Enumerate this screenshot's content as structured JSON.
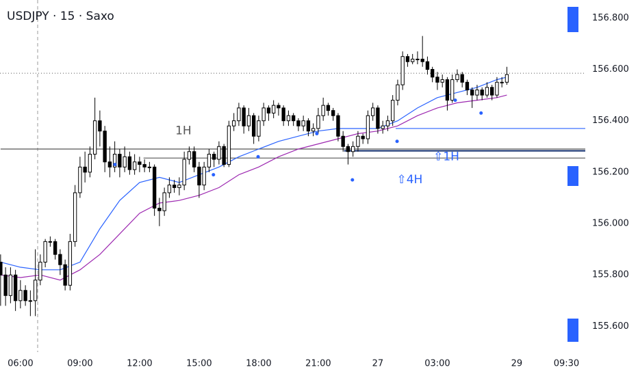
{
  "chart_data": {
    "type": "candlestick",
    "title": "USDJPY · 15 · Saxo",
    "x": [
      5,
      5.25,
      5.5,
      5.75,
      6,
      6.25,
      6.5,
      6.75,
      7,
      7.25,
      7.5,
      7.75,
      8,
      8.25,
      8.5,
      8.75,
      9,
      9.25,
      9.5,
      9.75,
      10,
      10.25,
      10.5,
      10.75,
      11,
      11.25,
      11.5,
      11.75,
      12,
      12.25,
      12.5,
      12.75,
      13,
      13.25,
      13.5,
      13.75,
      14,
      14.25,
      14.5,
      14.75,
      15,
      15.25,
      15.5,
      15.75,
      16,
      16.25,
      16.5,
      16.75,
      17,
      17.25,
      17.5,
      17.75,
      18,
      18.25,
      18.5,
      18.75,
      19,
      19.25,
      19.5,
      19.75,
      20,
      20.25,
      20.5,
      20.75,
      21,
      21.25,
      21.5,
      21.75,
      22,
      22.25,
      22.5,
      22.75,
      23,
      23.25,
      23.5,
      23.75,
      24,
      24.25,
      24.5,
      24.75,
      25,
      25.25,
      25.5,
      25.75,
      26,
      26.25,
      26.5,
      26.75,
      27,
      27.25,
      27.5,
      27.75,
      28,
      28.25,
      28.5,
      28.75,
      29,
      29.25,
      29.5,
      29.75,
      30,
      30.25,
      30.5
    ],
    "open": [
      155.85,
      155.8,
      155.72,
      155.8,
      155.7,
      155.74,
      155.7,
      155.7,
      155.78,
      155.85,
      155.93,
      155.93,
      155.88,
      155.84,
      155.76,
      155.93,
      156.12,
      156.22,
      156.2,
      156.27,
      156.4,
      156.36,
      156.24,
      156.22,
      156.27,
      156.22,
      156.26,
      156.21,
      156.24,
      156.23,
      156.22,
      156.22,
      156.06,
      156.05,
      156.12,
      156.15,
      156.14,
      156.15,
      156.25,
      156.28,
      156.22,
      156.15,
      156.22,
      156.27,
      156.25,
      156.3,
      156.23,
      156.38,
      156.4,
      156.45,
      156.38,
      156.42,
      156.34,
      156.4,
      156.45,
      156.43,
      156.46,
      156.45,
      156.4,
      156.42,
      156.4,
      156.38,
      156.4,
      156.36,
      156.37,
      156.42,
      156.46,
      156.44,
      156.42,
      156.34,
      156.3,
      156.28,
      156.3,
      156.34,
      156.33,
      156.42,
      156.45,
      156.37,
      156.38,
      156.4,
      156.48,
      156.54,
      156.65,
      156.63,
      156.64,
      156.64,
      156.63,
      156.6,
      156.57,
      156.55,
      156.56,
      156.48,
      156.56,
      156.58,
      156.55,
      156.52,
      156.5,
      156.52,
      156.5,
      156.53,
      156.5,
      156.55,
      156.55
    ],
    "high": [
      155.88,
      155.83,
      155.83,
      155.82,
      155.78,
      155.76,
      155.74,
      155.9,
      155.88,
      155.94,
      155.95,
      155.94,
      155.9,
      155.86,
      155.96,
      156.15,
      156.26,
      156.28,
      156.3,
      156.49,
      156.44,
      156.38,
      156.3,
      156.32,
      156.29,
      156.3,
      156.28,
      156.27,
      156.26,
      156.25,
      156.24,
      156.23,
      156.1,
      156.14,
      156.18,
      156.17,
      156.18,
      156.28,
      156.3,
      156.3,
      156.24,
      156.24,
      156.29,
      156.28,
      156.32,
      156.31,
      156.4,
      156.43,
      156.47,
      156.46,
      156.45,
      156.43,
      156.42,
      156.47,
      156.46,
      156.48,
      156.47,
      156.46,
      156.44,
      156.43,
      156.41,
      156.42,
      156.41,
      156.39,
      156.45,
      156.49,
      156.47,
      156.45,
      156.43,
      156.36,
      156.31,
      156.32,
      156.36,
      156.35,
      156.44,
      156.47,
      156.46,
      156.4,
      156.42,
      156.5,
      156.56,
      156.67,
      156.66,
      156.66,
      156.67,
      156.73,
      156.65,
      156.61,
      156.59,
      156.58,
      156.57,
      156.58,
      156.6,
      156.59,
      156.56,
      156.53,
      156.54,
      156.53,
      156.55,
      156.54,
      156.57,
      156.57,
      156.61
    ],
    "low": [
      155.68,
      155.68,
      155.69,
      155.66,
      155.67,
      155.68,
      155.64,
      155.64,
      155.76,
      155.83,
      155.91,
      155.86,
      155.8,
      155.74,
      155.74,
      155.91,
      156.1,
      156.16,
      156.18,
      156.25,
      156.3,
      156.2,
      156.18,
      156.2,
      156.18,
      156.2,
      156.19,
      156.19,
      156.2,
      156.2,
      156.2,
      156.03,
      155.99,
      156.03,
      156.1,
      156.12,
      156.11,
      156.13,
      156.23,
      156.2,
      156.1,
      156.13,
      156.2,
      156.22,
      156.23,
      156.22,
      156.22,
      156.36,
      156.38,
      156.35,
      156.36,
      156.31,
      156.32,
      156.38,
      156.4,
      156.41,
      156.42,
      156.38,
      156.38,
      156.38,
      156.36,
      156.36,
      156.34,
      156.34,
      156.35,
      156.4,
      156.42,
      156.4,
      156.32,
      156.28,
      156.23,
      156.26,
      156.28,
      156.31,
      156.31,
      156.4,
      156.35,
      156.35,
      156.36,
      156.38,
      156.46,
      156.52,
      156.61,
      156.62,
      156.62,
      156.61,
      156.58,
      156.55,
      156.52,
      156.53,
      156.44,
      156.47,
      156.55,
      156.53,
      156.5,
      156.45,
      156.48,
      156.48,
      156.49,
      156.48,
      156.49,
      156.53,
      156.54
    ],
    "close": [
      155.8,
      155.72,
      155.8,
      155.7,
      155.74,
      155.7,
      155.7,
      155.78,
      155.85,
      155.93,
      155.93,
      155.88,
      155.84,
      155.76,
      155.93,
      156.12,
      156.22,
      156.2,
      156.27,
      156.4,
      156.36,
      156.24,
      156.22,
      156.27,
      156.22,
      156.26,
      156.21,
      156.24,
      156.23,
      156.22,
      156.22,
      156.06,
      156.05,
      156.12,
      156.15,
      156.14,
      156.15,
      156.25,
      156.28,
      156.22,
      156.15,
      156.22,
      156.27,
      156.25,
      156.3,
      156.23,
      156.38,
      156.4,
      156.45,
      156.38,
      156.42,
      156.34,
      156.4,
      156.45,
      156.43,
      156.46,
      156.45,
      156.4,
      156.42,
      156.4,
      156.38,
      156.4,
      156.36,
      156.37,
      156.42,
      156.46,
      156.44,
      156.42,
      156.34,
      156.3,
      156.28,
      156.3,
      156.34,
      156.33,
      156.42,
      156.45,
      156.37,
      156.38,
      156.4,
      156.48,
      156.54,
      156.65,
      156.63,
      156.64,
      156.64,
      156.63,
      156.6,
      156.57,
      156.55,
      156.56,
      156.48,
      156.56,
      156.58,
      156.55,
      156.52,
      156.5,
      156.52,
      156.5,
      156.53,
      156.5,
      156.55,
      156.55,
      156.58
    ],
    "up_color": "#ffffff",
    "down_color": "#000000",
    "border_color": "#000000",
    "lines": [
      {
        "color": "#2962ff",
        "x": [
          5,
          6,
          7,
          8,
          9,
          10,
          11,
          12,
          13,
          14,
          15,
          16,
          17,
          18,
          19,
          20,
          21,
          22,
          23,
          24,
          25,
          26,
          27,
          28,
          29,
          30,
          30.5
        ],
        "values": [
          155.85,
          155.83,
          155.82,
          155.82,
          155.85,
          155.98,
          156.09,
          156.16,
          156.18,
          156.16,
          156.19,
          156.22,
          156.26,
          156.29,
          156.32,
          156.34,
          156.36,
          156.37,
          156.37,
          156.37,
          156.4,
          156.45,
          156.49,
          156.51,
          156.53,
          156.56,
          156.57
        ]
      },
      {
        "color": "#9c27b0",
        "x": [
          5,
          6,
          7,
          8,
          9,
          10,
          11,
          12,
          13,
          14,
          15,
          16,
          17,
          18,
          19,
          20,
          21,
          22,
          23,
          24,
          25,
          26,
          27,
          28,
          29,
          30,
          30.5
        ],
        "values": [
          155.8,
          155.79,
          155.8,
          155.78,
          155.82,
          155.88,
          155.96,
          156.04,
          156.08,
          156.09,
          156.11,
          156.14,
          156.19,
          156.22,
          156.26,
          156.29,
          156.31,
          156.33,
          156.35,
          156.36,
          156.38,
          156.42,
          156.45,
          156.47,
          156.48,
          156.49,
          156.5
        ]
      }
    ],
    "markers": {
      "color": "#2962ff",
      "x": [
        10.76,
        15.72,
        17.97,
        20.93,
        22.72,
        24.97,
        27.9,
        29.2
      ],
      "values": [
        156.23,
        156.19,
        156.26,
        156.35,
        156.17,
        156.32,
        156.48,
        156.43
      ]
    },
    "levels": [
      {
        "value": 156.29,
        "from": 5,
        "color": "#555555"
      },
      {
        "value": 156.255,
        "from": 12.2,
        "color": "#555555"
      },
      {
        "value": 156.283,
        "from": 22.3,
        "color": "#0d2a6b"
      },
      {
        "value": 156.37,
        "from": 24.9,
        "color": "#2962ff"
      }
    ],
    "last_price": 156.585,
    "annotations": [
      {
        "text": "1H",
        "x": 13.8,
        "y": 156.36,
        "color": "#555555"
      },
      {
        "text": "⇧1H",
        "x": 26.8,
        "y": 156.26,
        "color": "#2962ff"
      },
      {
        "text": "⇧4H",
        "x": 24.95,
        "y": 156.17,
        "color": "#2962ff"
      }
    ],
    "xlim": [
      4.97,
      34.45
    ],
    "ylim": [
      155.5,
      156.87
    ],
    "xticks": [
      {
        "value": 6,
        "label": "06:00"
      },
      {
        "value": 9,
        "label": "09:00"
      },
      {
        "value": 12,
        "label": "12:00"
      },
      {
        "value": 15,
        "label": "15:00"
      },
      {
        "value": 18,
        "label": "18:00"
      },
      {
        "value": 21,
        "label": "21:00"
      },
      {
        "value": 24,
        "label": "27"
      },
      {
        "value": 27,
        "label": "03:00"
      },
      {
        "value": 31,
        "label": "29"
      },
      {
        "value": 33.5,
        "label": "09:30"
      }
    ],
    "yticks": [
      {
        "value": 155.6,
        "label": "155.600"
      },
      {
        "value": 155.8,
        "label": "155.800"
      },
      {
        "value": 156.0,
        "label": "156.000"
      },
      {
        "value": 156.2,
        "label": "156.200"
      },
      {
        "value": 156.4,
        "label": "156.400"
      },
      {
        "value": 156.6,
        "label": "156.600"
      },
      {
        "value": 156.8,
        "label": "156.800"
      }
    ]
  }
}
